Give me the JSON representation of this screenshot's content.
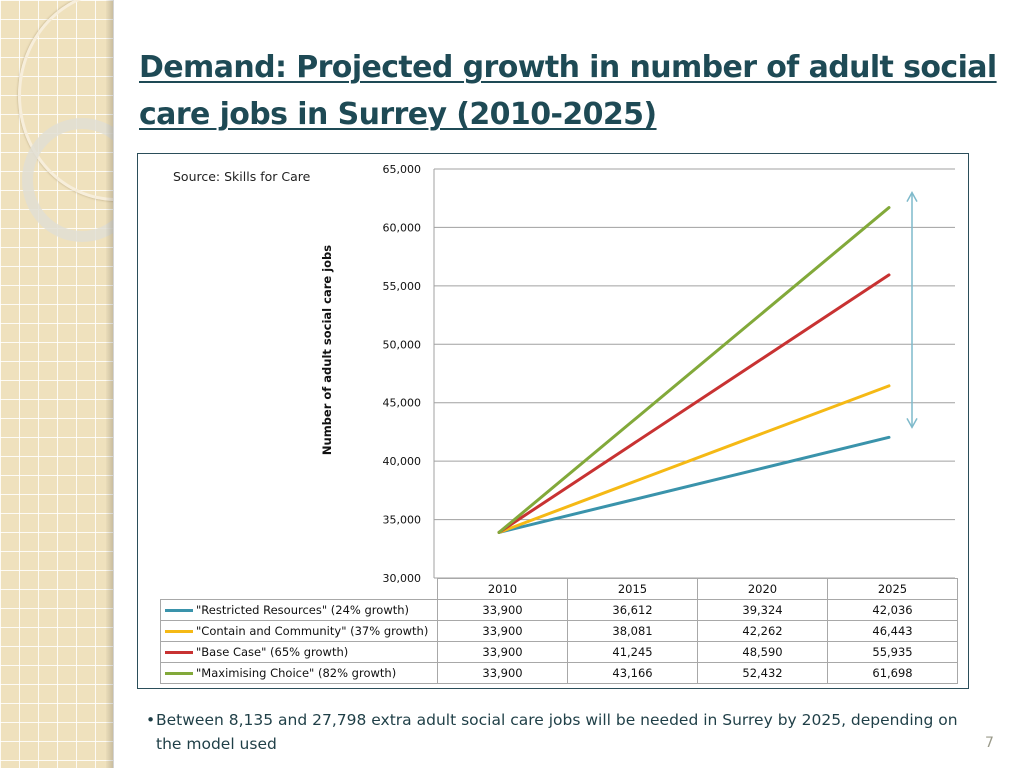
{
  "slide": {
    "title": "Demand: Projected growth in number of adult social care jobs in Surrey (2010-2025)",
    "source": "Source: Skills for Care",
    "bullet": "Between 8,135 and 27,798 extra adult social care jobs will be needed in Surrey by 2025, depending on the model used",
    "bullet_marker": "•",
    "page_number": "7"
  },
  "colors": {
    "title": "#1e4a55",
    "restricted": "#3a93ab",
    "contain": "#f5b915",
    "base": "#c83232",
    "maximising": "#82a93a",
    "arrow": "#7fbacb",
    "frame": "#2b4e5a"
  },
  "chart_data": {
    "type": "line",
    "title": "",
    "xlabel": "",
    "ylabel": "Number of adult social care jobs",
    "categories": [
      "2010",
      "2015",
      "2020",
      "2025"
    ],
    "ylim": [
      30000,
      65000
    ],
    "yticks": [
      30000,
      35000,
      40000,
      45000,
      50000,
      55000,
      60000,
      65000
    ],
    "ytick_labels": [
      "30,000",
      "35,000",
      "40,000",
      "45,000",
      "50,000",
      "55,000",
      "60,000",
      "65,000"
    ],
    "grid": true,
    "legend": "data-table-below",
    "series": [
      {
        "name": "\"Restricted Resources\" (24% growth)",
        "color_key": "restricted",
        "values": [
          33900,
          36612,
          39324,
          42036
        ],
        "labels": [
          "33,900",
          "36,612",
          "39,324",
          "42,036"
        ]
      },
      {
        "name": "\"Contain and Community\" (37% growth)",
        "color_key": "contain",
        "values": [
          33900,
          38081,
          42262,
          46443
        ],
        "labels": [
          "33,900",
          "38,081",
          "42,262",
          "46,443"
        ]
      },
      {
        "name": "\"Base Case\" (65% growth)",
        "color_key": "base",
        "values": [
          33900,
          41245,
          48590,
          55935
        ],
        "labels": [
          "33,900",
          "41,245",
          "48,590",
          "55,935"
        ]
      },
      {
        "name": "\"Maximising Choice\" (82% growth)",
        "color_key": "maximising",
        "values": [
          33900,
          43166,
          52432,
          61698
        ],
        "labels": [
          "33,900",
          "43,166",
          "52,432",
          "61,698"
        ]
      }
    ],
    "annotations": [
      {
        "type": "double-arrow",
        "x_category": "after-2025",
        "from": 42036,
        "to": 61698,
        "meaning": "range between lowest and highest projection"
      }
    ]
  }
}
